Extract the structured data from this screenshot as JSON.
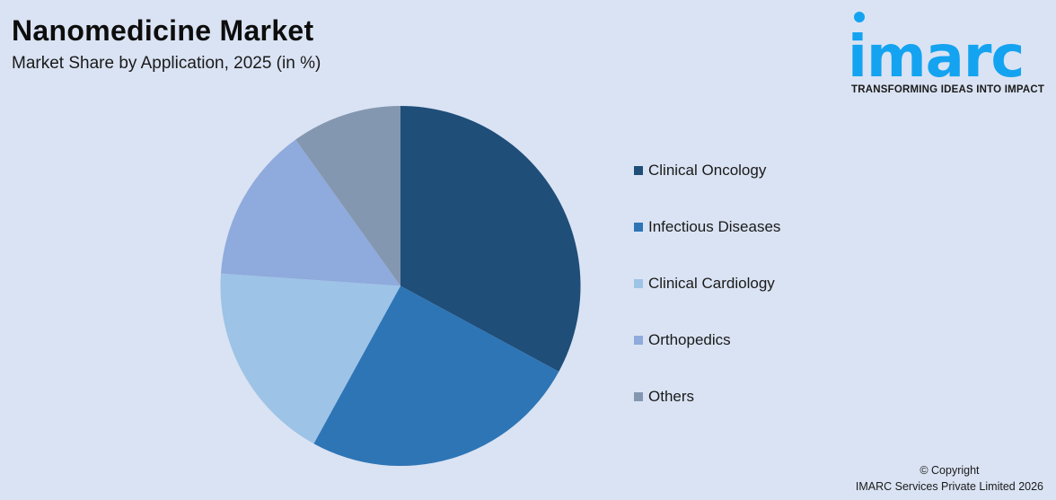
{
  "header": {
    "title": "Nanomedicine Market",
    "subtitle": "Market Share by Application, 2025 (in %)"
  },
  "logo": {
    "word": "imarc",
    "tagline": "TRANSFORMING IDEAS INTO IMPACT",
    "color": "#14a3f0"
  },
  "footer": {
    "copyright_line1": "© Copyright",
    "copyright_line2": "IMARC Services Private Limited 2026"
  },
  "chart_data": {
    "type": "pie",
    "title": "Nanomedicine Market",
    "subtitle": "Market Share by Application, 2025 (in %)",
    "categories": [
      "Clinical Oncology",
      "Infectious Diseases",
      "Clinical Cardiology",
      "Orthopedics",
      "Others"
    ],
    "values": [
      32.9,
      25.1,
      18.1,
      14.0,
      9.9
    ],
    "colors": [
      "#1f4e79",
      "#2e75b6",
      "#9dc3e6",
      "#8faadc",
      "#8497b0"
    ],
    "start_angle_deg": 0,
    "direction": "clockwise",
    "legend_position": "right",
    "data_labels": false
  }
}
